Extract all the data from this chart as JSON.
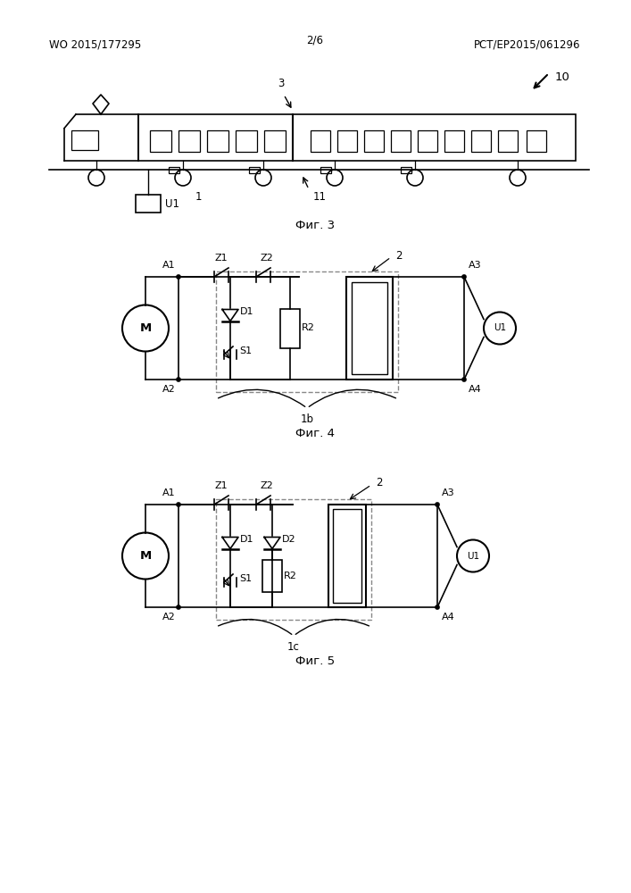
{
  "bg_color": "#ffffff",
  "line_color": "#000000",
  "header_left": "WO 2015/177295",
  "header_center": "2/6",
  "header_right": "PCT/EP2015/061296",
  "fig3_caption": "Фиг. 3",
  "fig4_caption": "Фиг. 4",
  "fig5_caption": "Фиг. 5",
  "label_10": "10",
  "label_3": "3",
  "label_1": "1",
  "label_11": "11",
  "label_U1_train": "U1",
  "label_1b": "1b",
  "label_1c": "1c",
  "label_A1_4": "A1",
  "label_A2_4": "A2",
  "label_A3_4": "A3",
  "label_A4_4": "A4",
  "label_Z1_4": "Z1",
  "label_Z2_4": "Z2",
  "label_D1_4": "D1",
  "label_R2_4": "R2",
  "label_S1_4": "S1",
  "label_2_4": "2",
  "label_U1_4": "U1",
  "label_M_4": "M",
  "label_A1_5": "A1",
  "label_A2_5": "A2",
  "label_A3_5": "A3",
  "label_A4_5": "A4",
  "label_Z1_5": "Z1",
  "label_Z2_5": "Z2",
  "label_D1_5": "D1",
  "label_D2_5": "D2",
  "label_R2_5": "R2",
  "label_S1_5": "S1",
  "label_2_5": "2",
  "label_U1_5": "U1",
  "label_M_5": "M"
}
